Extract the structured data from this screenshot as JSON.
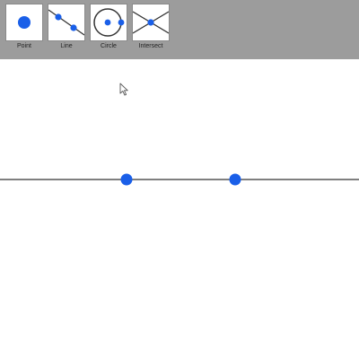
{
  "colors": {
    "toolbar_bg": "#9c9c9c",
    "point_blue": "#1a5fe8",
    "line_color": "#333333"
  },
  "toolbar": {
    "tools": [
      {
        "label": "Point",
        "icon": "point-icon"
      },
      {
        "label": "Line",
        "icon": "line-icon"
      },
      {
        "label": "Circle",
        "icon": "circle-icon"
      },
      {
        "label": "Intersect",
        "icon": "intersect-icon"
      }
    ]
  },
  "canvas": {
    "objects": [
      {
        "type": "line",
        "name": "horizontal-line"
      },
      {
        "type": "point",
        "name": "point-a"
      },
      {
        "type": "point",
        "name": "point-b"
      }
    ]
  }
}
